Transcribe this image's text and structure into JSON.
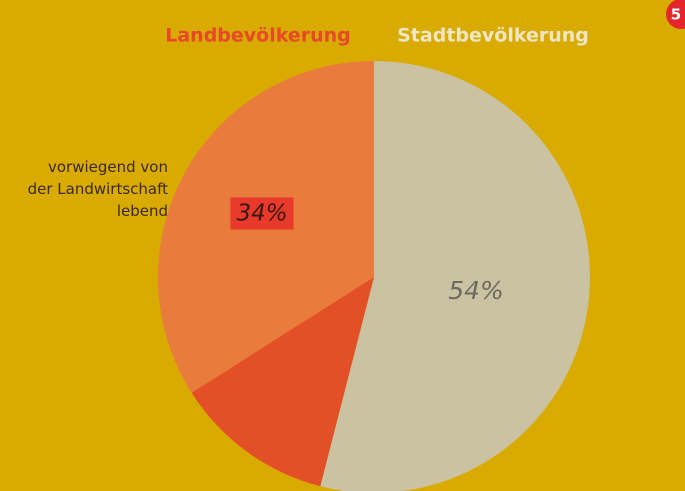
{
  "chart_data": {
    "type": "pie",
    "group_label": "Landbevölkerung",
    "categories": [
      "Stadtbevölkerung",
      null,
      "vorwiegend von\nder Landwirtschaft\nlebend"
    ],
    "values": [
      54,
      12,
      34
    ],
    "value_labels": [
      "54%",
      null,
      "34%"
    ],
    "colors": [
      "#cac2a0",
      "#e34f26",
      "#e97b3d"
    ]
  },
  "badge": "5"
}
